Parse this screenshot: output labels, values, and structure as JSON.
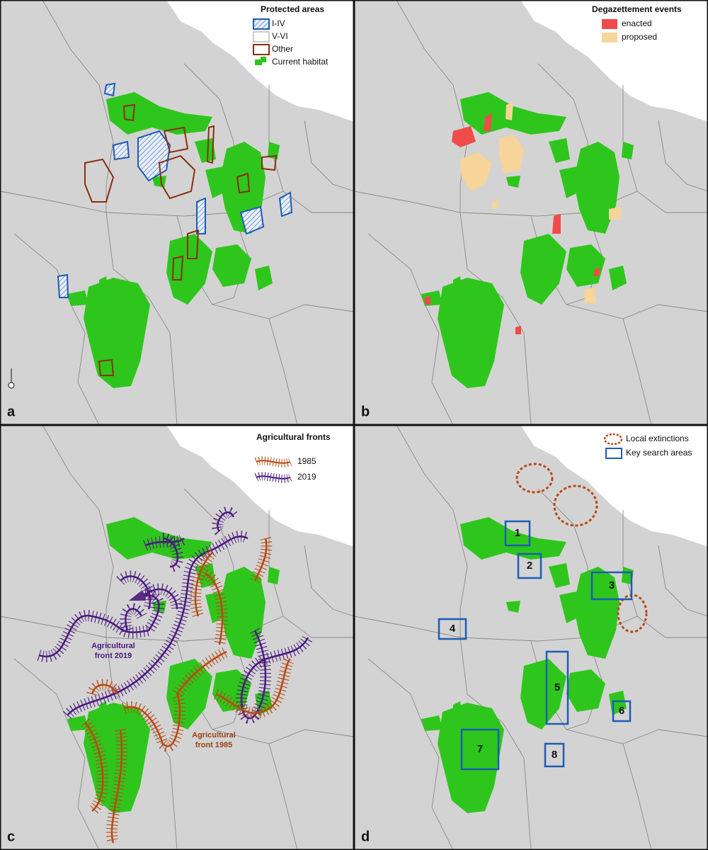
{
  "panels": [
    {
      "letter": "a",
      "legend": {
        "title": "Protected areas",
        "items": [
          "I-IV",
          "V-VI",
          "Other",
          "Current habitat"
        ]
      }
    },
    {
      "letter": "b",
      "legend": {
        "title": "Degazettement events",
        "items": [
          "enacted",
          "proposed"
        ]
      }
    },
    {
      "letter": "c",
      "legend": {
        "title": "Agricultural fronts",
        "items": [
          "1985",
          "2019"
        ]
      },
      "annotations": [
        {
          "lines": [
            "Agricultural",
            "front 2019"
          ]
        },
        {
          "lines": [
            "Agricultural",
            "front 1985"
          ]
        }
      ]
    },
    {
      "letter": "d",
      "legend": {
        "items": [
          "Local extinctions",
          "Key search areas"
        ]
      },
      "search_areas": [
        "1",
        "2",
        "3",
        "4",
        "5",
        "6",
        "7",
        "8"
      ]
    }
  ]
}
